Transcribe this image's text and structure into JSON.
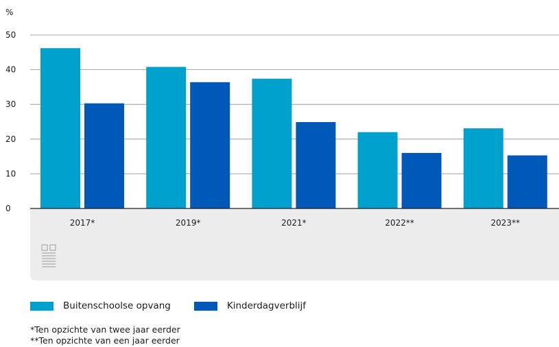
{
  "chart_data": {
    "type": "bar",
    "ylabel": "%",
    "ylim": [
      0,
      50
    ],
    "yticks": [
      0,
      10,
      20,
      30,
      40,
      50
    ],
    "grid": true,
    "legend_position": "bottom",
    "categories": [
      "2017*",
      "2019*",
      "2021*",
      "2022**",
      "2023**"
    ],
    "series": [
      {
        "name": "Buitenschoolse opvang",
        "color": "#00a1cd",
        "values": [
          46.2,
          40.8,
          37.4,
          22.0,
          23.1
        ]
      },
      {
        "name": "Kinderdagverblijf",
        "color": "#0058b8",
        "values": [
          30.3,
          36.4,
          24.9,
          16.0,
          15.3
        ]
      }
    ],
    "footnotes": [
      "*Ten opzichte van twee jaar eerder",
      "**Ten opzichte van een jaar eerder"
    ]
  },
  "logo": {
    "icon": "cbs-logo-icon"
  }
}
